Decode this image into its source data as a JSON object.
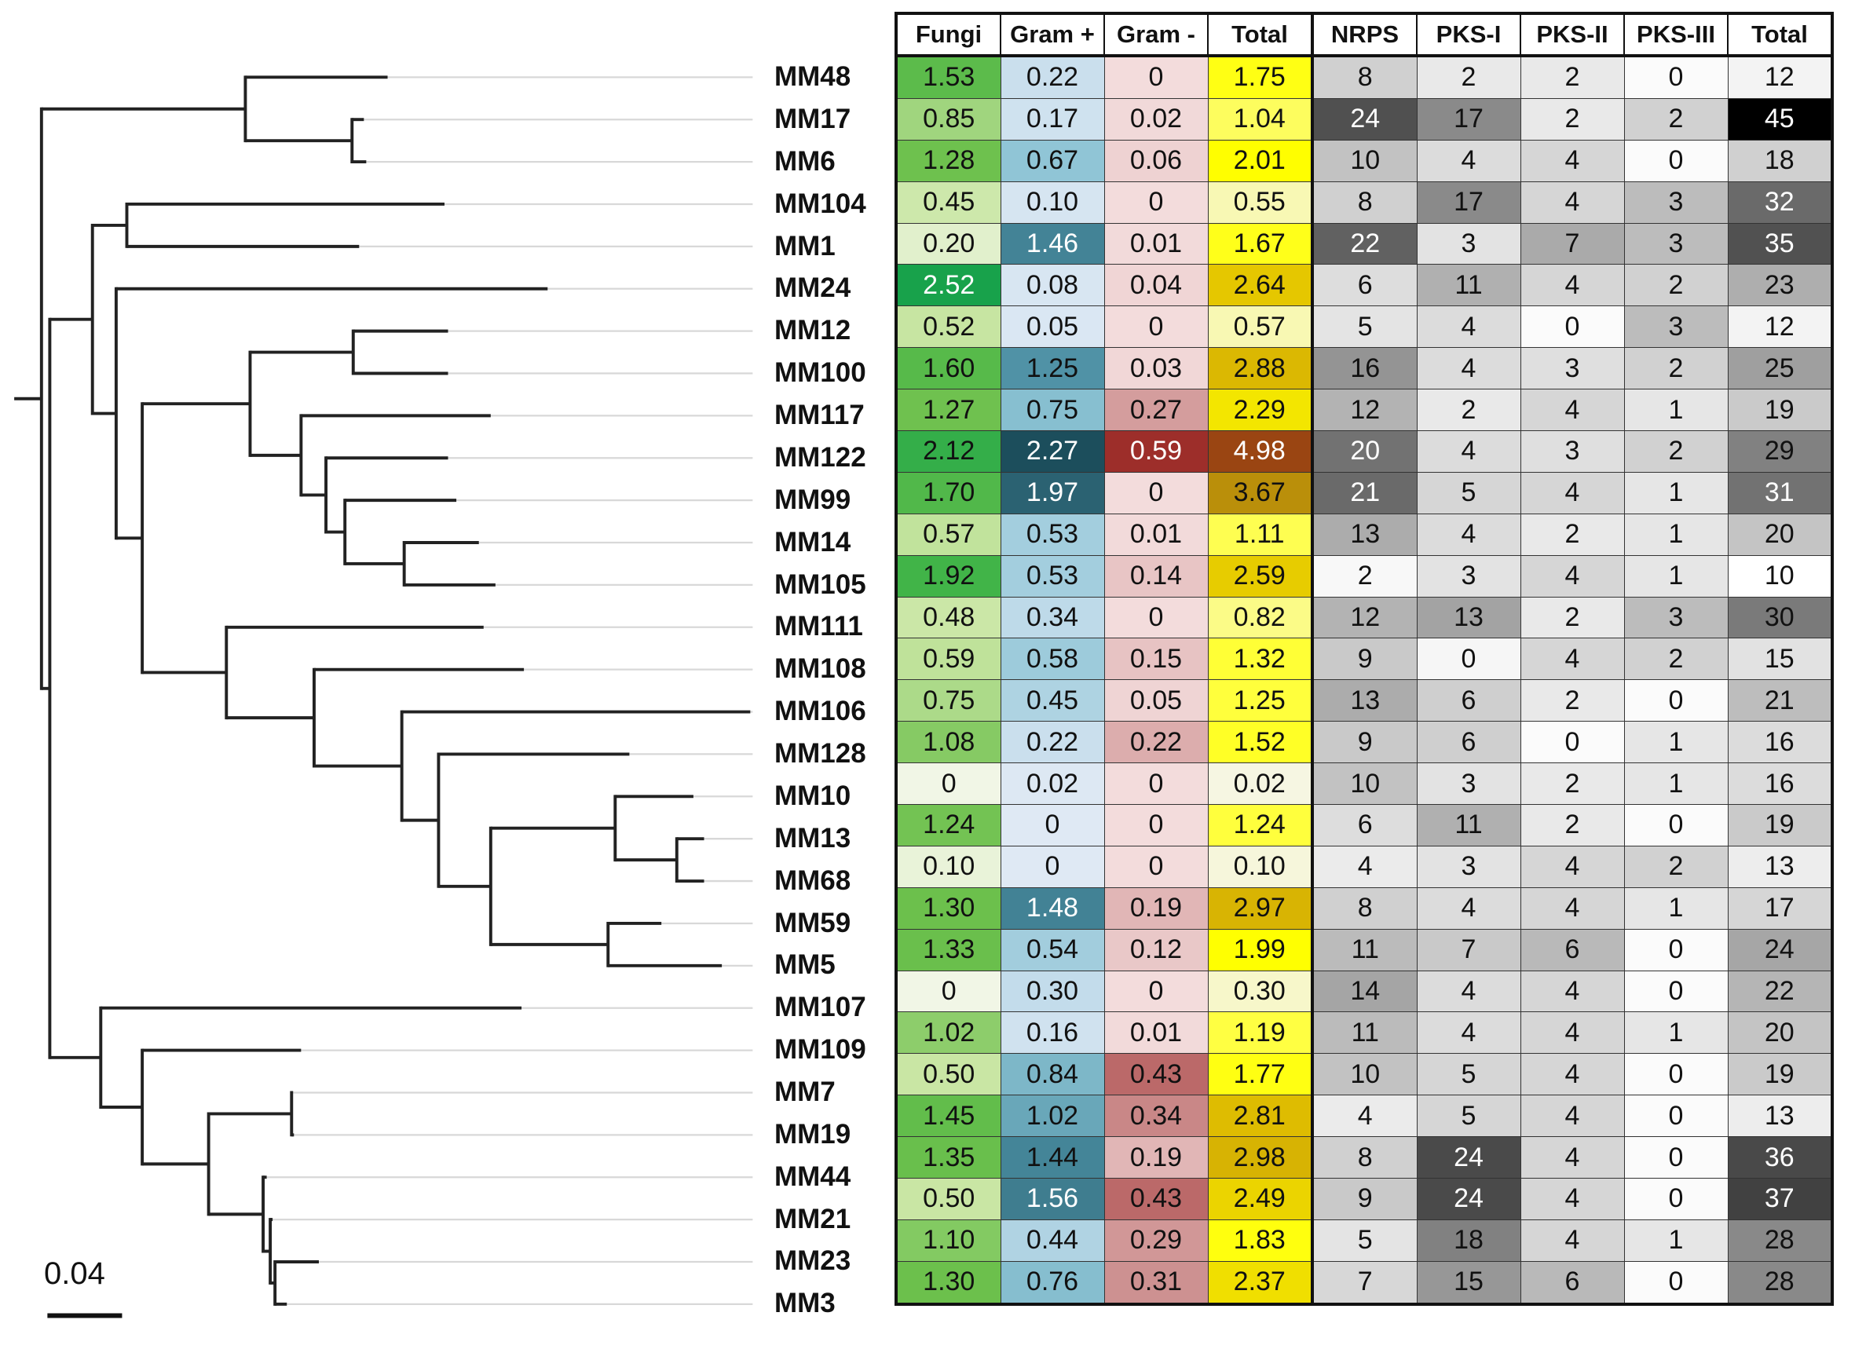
{
  "headers": [
    "Fungi",
    "Gram +",
    "Gram -",
    "Total",
    "NRPS",
    "PKS-I",
    "PKS-II",
    "PKS-III",
    "Total"
  ],
  "scale_bar": "0.04",
  "rows": [
    {
      "name": "MM48",
      "v": [
        "1.53",
        "0.22",
        "0",
        "1.75",
        "8",
        "2",
        "2",
        "0",
        "12"
      ]
    },
    {
      "name": "MM17",
      "v": [
        "0.85",
        "0.17",
        "0.02",
        "1.04",
        "24",
        "17",
        "2",
        "2",
        "45"
      ]
    },
    {
      "name": "MM6",
      "v": [
        "1.28",
        "0.67",
        "0.06",
        "2.01",
        "10",
        "4",
        "4",
        "0",
        "18"
      ]
    },
    {
      "name": "MM104",
      "v": [
        "0.45",
        "0.10",
        "0",
        "0.55",
        "8",
        "17",
        "4",
        "3",
        "32"
      ]
    },
    {
      "name": "MM1",
      "v": [
        "0.20",
        "1.46",
        "0.01",
        "1.67",
        "22",
        "3",
        "7",
        "3",
        "35"
      ]
    },
    {
      "name": "MM24",
      "v": [
        "2.52",
        "0.08",
        "0.04",
        "2.64",
        "6",
        "11",
        "4",
        "2",
        "23"
      ]
    },
    {
      "name": "MM12",
      "v": [
        "0.52",
        "0.05",
        "0",
        "0.57",
        "5",
        "4",
        "0",
        "3",
        "12"
      ]
    },
    {
      "name": "MM100",
      "v": [
        "1.60",
        "1.25",
        "0.03",
        "2.88",
        "16",
        "4",
        "3",
        "2",
        "25"
      ]
    },
    {
      "name": "MM117",
      "v": [
        "1.27",
        "0.75",
        "0.27",
        "2.29",
        "12",
        "2",
        "4",
        "1",
        "19"
      ]
    },
    {
      "name": "MM122",
      "v": [
        "2.12",
        "2.27",
        "0.59",
        "4.98",
        "20",
        "4",
        "3",
        "2",
        "29"
      ]
    },
    {
      "name": "MM99",
      "v": [
        "1.70",
        "1.97",
        "0",
        "3.67",
        "21",
        "5",
        "4",
        "1",
        "31"
      ]
    },
    {
      "name": "MM14",
      "v": [
        "0.57",
        "0.53",
        "0.01",
        "1.11",
        "13",
        "4",
        "2",
        "1",
        "20"
      ]
    },
    {
      "name": "MM105",
      "v": [
        "1.92",
        "0.53",
        "0.14",
        "2.59",
        "2",
        "3",
        "4",
        "1",
        "10"
      ]
    },
    {
      "name": "MM111",
      "v": [
        "0.48",
        "0.34",
        "0",
        "0.82",
        "12",
        "13",
        "2",
        "3",
        "30"
      ]
    },
    {
      "name": "MM108",
      "v": [
        "0.59",
        "0.58",
        "0.15",
        "1.32",
        "9",
        "0",
        "4",
        "2",
        "15"
      ]
    },
    {
      "name": "MM106",
      "v": [
        "0.75",
        "0.45",
        "0.05",
        "1.25",
        "13",
        "6",
        "2",
        "0",
        "21"
      ]
    },
    {
      "name": "MM128",
      "v": [
        "1.08",
        "0.22",
        "0.22",
        "1.52",
        "9",
        "6",
        "0",
        "1",
        "16"
      ]
    },
    {
      "name": "MM10",
      "v": [
        "0",
        "0.02",
        "0",
        "0.02",
        "10",
        "3",
        "2",
        "1",
        "16"
      ]
    },
    {
      "name": "MM13",
      "v": [
        "1.24",
        "0",
        "0",
        "1.24",
        "6",
        "11",
        "2",
        "0",
        "19"
      ]
    },
    {
      "name": "MM68",
      "v": [
        "0.10",
        "0",
        "0",
        "0.10",
        "4",
        "3",
        "4",
        "2",
        "13"
      ]
    },
    {
      "name": "MM59",
      "v": [
        "1.30",
        "1.48",
        "0.19",
        "2.97",
        "8",
        "4",
        "4",
        "1",
        "17"
      ]
    },
    {
      "name": "MM5",
      "v": [
        "1.33",
        "0.54",
        "0.12",
        "1.99",
        "11",
        "7",
        "6",
        "0",
        "24"
      ]
    },
    {
      "name": "MM107",
      "v": [
        "0",
        "0.30",
        "0",
        "0.30",
        "14",
        "4",
        "4",
        "0",
        "22"
      ]
    },
    {
      "name": "MM109",
      "v": [
        "1.02",
        "0.16",
        "0.01",
        "1.19",
        "11",
        "4",
        "4",
        "1",
        "20"
      ]
    },
    {
      "name": "MM7",
      "v": [
        "0.50",
        "0.84",
        "0.43",
        "1.77",
        "10",
        "5",
        "4",
        "0",
        "19"
      ]
    },
    {
      "name": "MM19",
      "v": [
        "1.45",
        "1.02",
        "0.34",
        "2.81",
        "4",
        "5",
        "4",
        "0",
        "13"
      ]
    },
    {
      "name": "MM44",
      "v": [
        "1.35",
        "1.44",
        "0.19",
        "2.98",
        "8",
        "24",
        "4",
        "0",
        "36"
      ]
    },
    {
      "name": "MM21",
      "v": [
        "0.50",
        "1.56",
        "0.43",
        "2.49",
        "9",
        "24",
        "4",
        "0",
        "37"
      ]
    },
    {
      "name": "MM23",
      "v": [
        "1.10",
        "0.44",
        "0.29",
        "1.83",
        "5",
        "18",
        "4",
        "1",
        "28"
      ]
    },
    {
      "name": "MM3",
      "v": [
        "1.30",
        "0.76",
        "0.31",
        "2.37",
        "7",
        "15",
        "6",
        "0",
        "28"
      ]
    }
  ]
}
